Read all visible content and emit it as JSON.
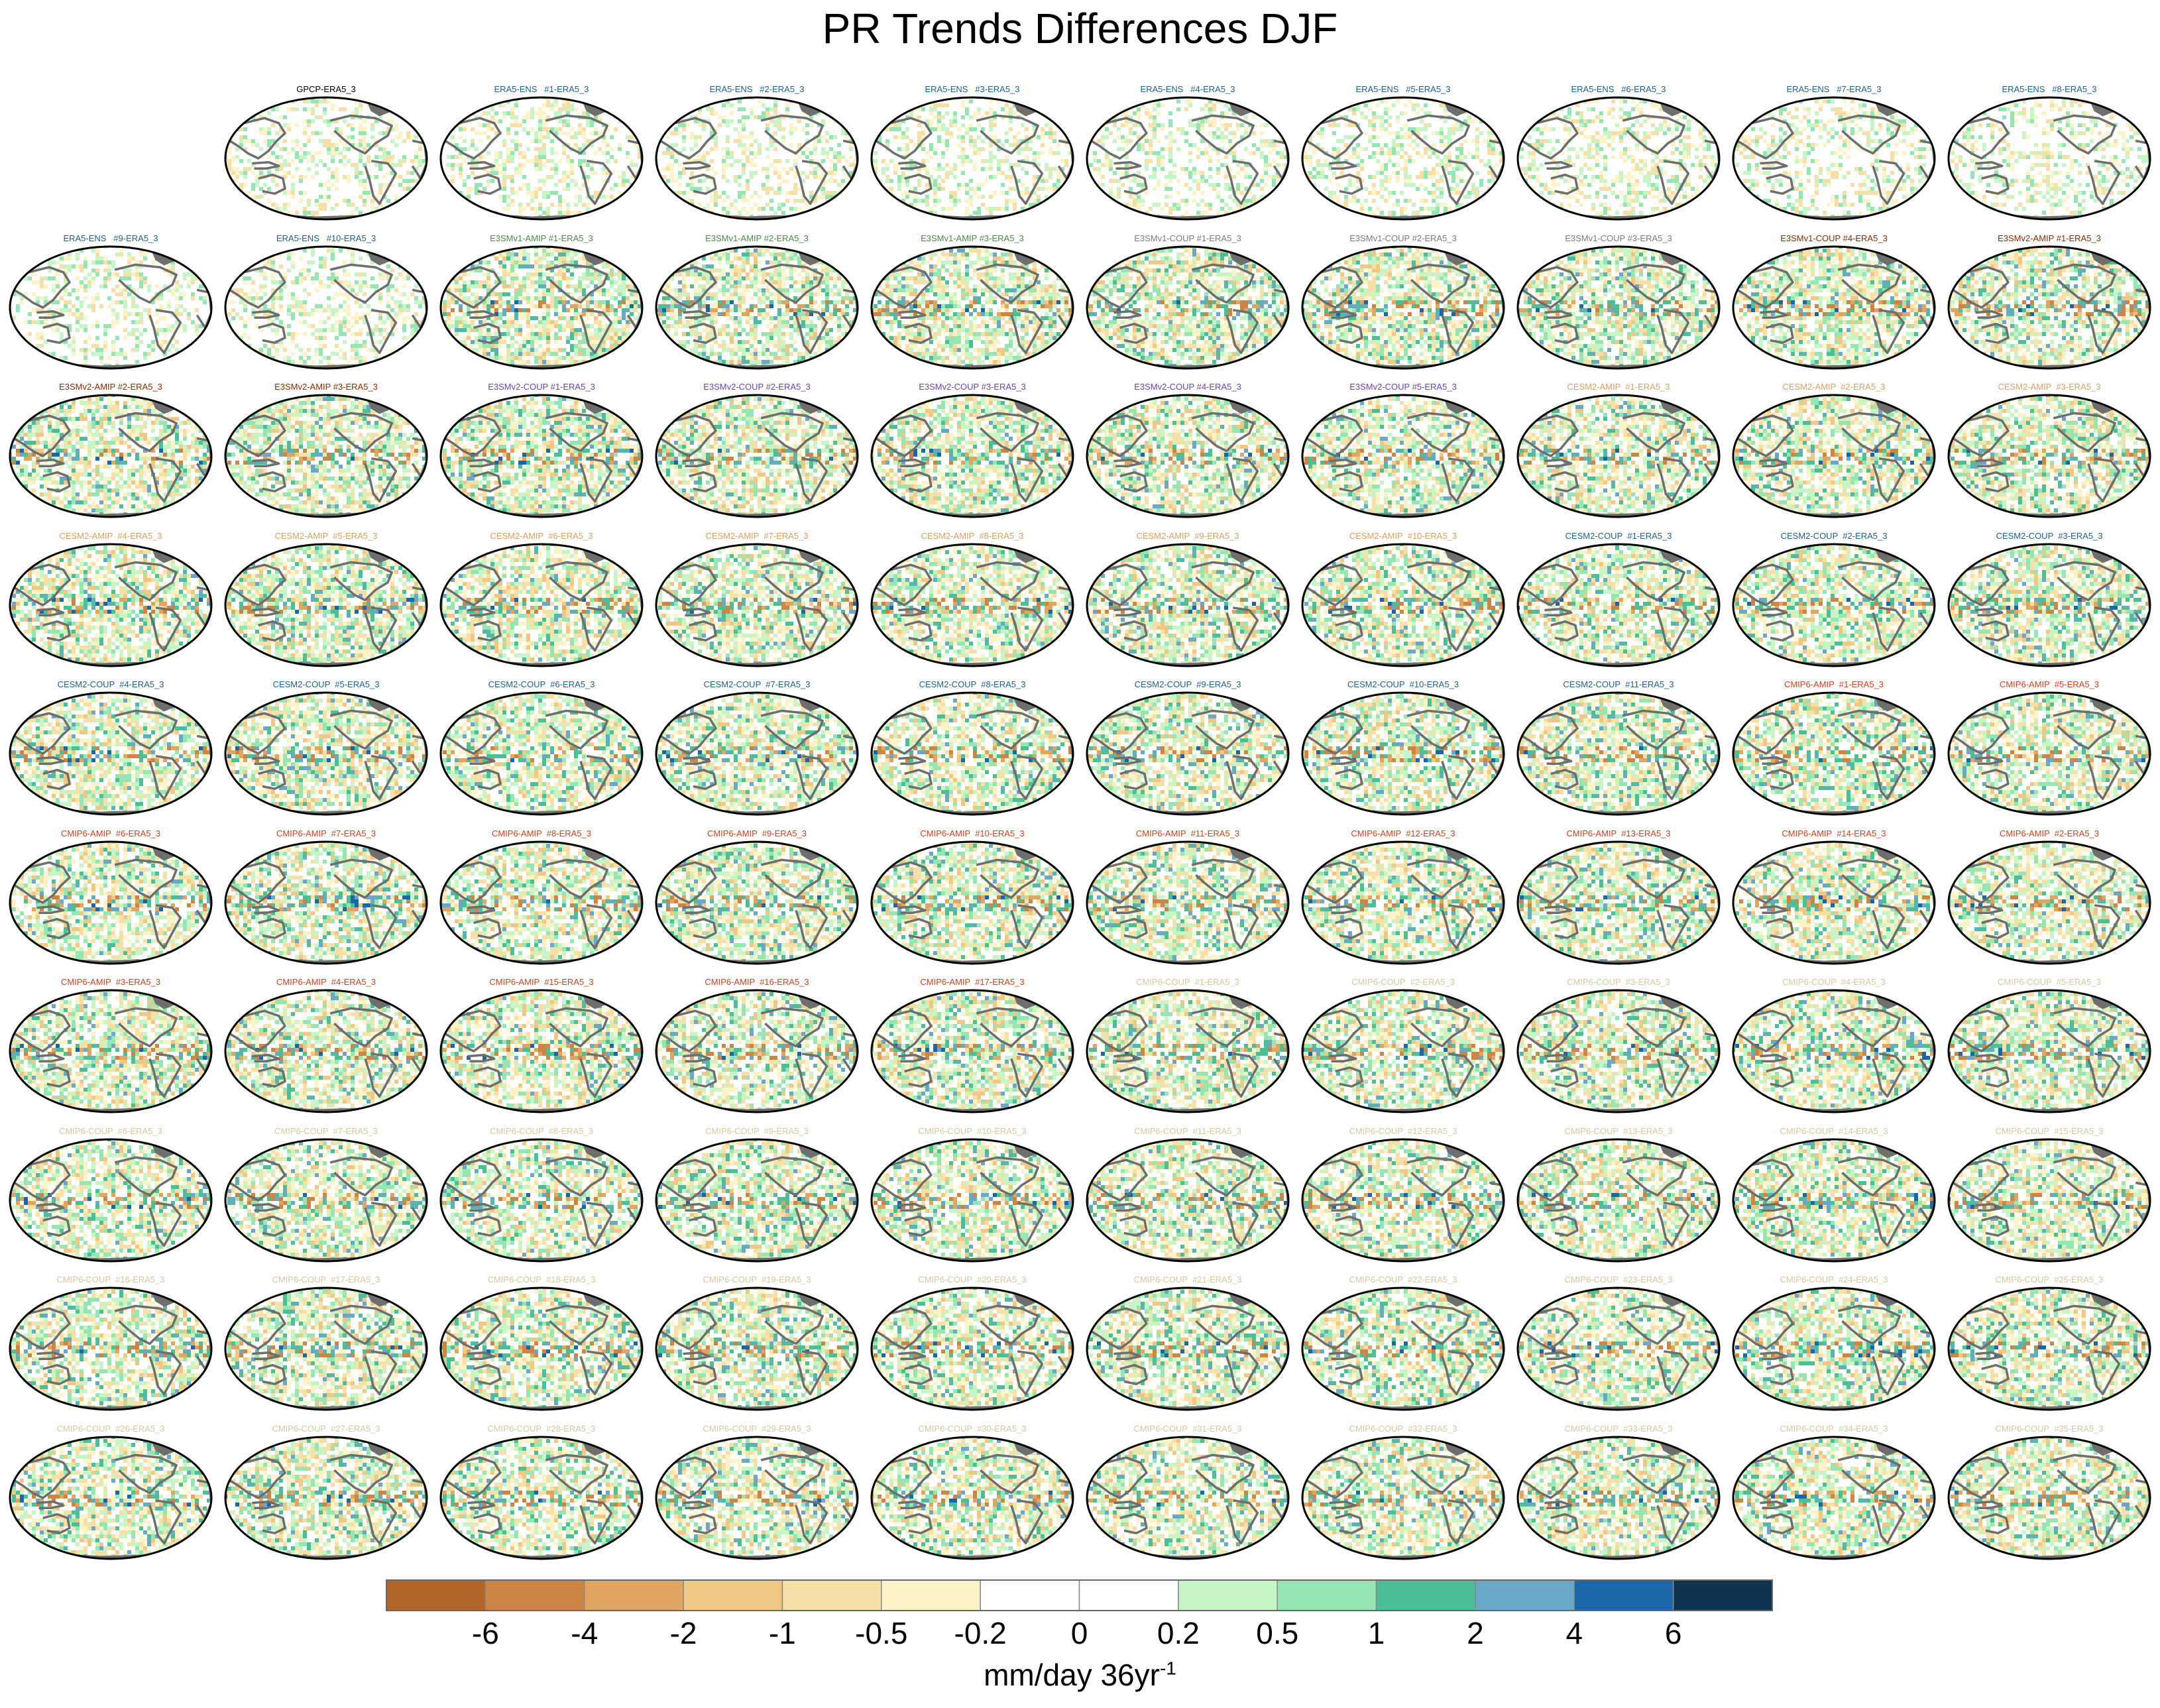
{
  "title": "PR Trends Differences DJF",
  "chart_data": {
    "type": "heatmap",
    "title": "PR Trends Differences DJF",
    "projection": "Robinson-like global map, Pacific-centered",
    "colorbar": {
      "units": "mm/day 36yr",
      "units_exponent": "-1",
      "tick_labels": [
        "-6",
        "-4",
        "-2",
        "-1",
        "-0.5",
        "-0.2",
        "0",
        "0.2",
        "0.5",
        "1",
        "2",
        "4",
        "6"
      ],
      "colors": [
        "#b2662a",
        "#cc8544",
        "#e0a560",
        "#f0c886",
        "#f6e0a8",
        "#fcf3c8",
        "#ffffff",
        "#ffffff",
        "#c8f5c6",
        "#96e6b3",
        "#4dbf98",
        "#6aa8c8",
        "#1a66a8",
        "#0d3350"
      ]
    },
    "panels": [
      {
        "label": "GPCP-ERA5_3",
        "color": "#000000",
        "row": 0,
        "col": 1
      },
      {
        "label": "ERA5-ENS   #1-ERA5_3",
        "color": "#1f5f8b",
        "row": 0,
        "col": 2
      },
      {
        "label": "ERA5-ENS   #2-ERA5_3",
        "color": "#1f5f8b",
        "row": 0,
        "col": 3
      },
      {
        "label": "ERA5-ENS   #3-ERA5_3",
        "color": "#1f5f8b",
        "row": 0,
        "col": 4
      },
      {
        "label": "ERA5-ENS   #4-ERA5_3",
        "color": "#1f5f8b",
        "row": 0,
        "col": 5
      },
      {
        "label": "ERA5-ENS   #5-ERA5_3",
        "color": "#1f5f8b",
        "row": 0,
        "col": 6
      },
      {
        "label": "ERA5-ENS   #6-ERA5_3",
        "color": "#1f5f8b",
        "row": 0,
        "col": 7
      },
      {
        "label": "ERA5-ENS   #7-ERA5_3",
        "color": "#1f5f8b",
        "row": 0,
        "col": 8
      },
      {
        "label": "ERA5-ENS   #8-ERA5_3",
        "color": "#1f5f8b",
        "row": 0,
        "col": 9
      },
      {
        "label": "ERA5-ENS   #9-ERA5_3",
        "color": "#1f5f8b",
        "row": 1,
        "col": 0
      },
      {
        "label": "ERA5-ENS   #10-ERA5_3",
        "color": "#1f5f8b",
        "row": 1,
        "col": 1
      },
      {
        "label": "E3SMv1-AMIP #1-ERA5_3",
        "color": "#4a8a4a",
        "row": 1,
        "col": 2
      },
      {
        "label": "E3SMv1-AMIP #2-ERA5_3",
        "color": "#4a8a4a",
        "row": 1,
        "col": 3
      },
      {
        "label": "E3SMv1-AMIP #3-ERA5_3",
        "color": "#4a8a4a",
        "row": 1,
        "col": 4
      },
      {
        "label": "E3SMv1-COUP #1-ERA5_3",
        "color": "#7a7a7a",
        "row": 1,
        "col": 5
      },
      {
        "label": "E3SMv1-COUP #2-ERA5_3",
        "color": "#7a7a7a",
        "row": 1,
        "col": 6
      },
      {
        "label": "E3SMv1-COUP #3-ERA5_3",
        "color": "#7a7a7a",
        "row": 1,
        "col": 7
      },
      {
        "label": "E3SMv1-COUP #4-ERA5_3",
        "color": "#8b2a00",
        "row": 1,
        "col": 8
      },
      {
        "label": "E3SMv2-AMIP #1-ERA5_3",
        "color": "#8b2a00",
        "row": 1,
        "col": 9
      },
      {
        "label": "E3SMv2-AMIP #2-ERA5_3",
        "color": "#8b2a00",
        "row": 2,
        "col": 0
      },
      {
        "label": "E3SMv2-AMIP #3-ERA5_3",
        "color": "#8b2a00",
        "row": 2,
        "col": 1
      },
      {
        "label": "E3SMv2-COUP #1-ERA5_3",
        "color": "#6a3fc0",
        "row": 2,
        "col": 2
      },
      {
        "label": "E3SMv2-COUP #2-ERA5_3",
        "color": "#6a3fc0",
        "row": 2,
        "col": 3
      },
      {
        "label": "E3SMv2-COUP #3-ERA5_3",
        "color": "#6a3fc0",
        "row": 2,
        "col": 4
      },
      {
        "label": "E3SMv2-COUP #4-ERA5_3",
        "color": "#6a3fc0",
        "row": 2,
        "col": 5
      },
      {
        "label": "E3SMv2-COUP #5-ERA5_3",
        "color": "#6a3fc0",
        "row": 2,
        "col": 6
      },
      {
        "label": "CESM2-AMIP  #1-ERA5_3",
        "color": "#d9a066",
        "row": 2,
        "col": 7
      },
      {
        "label": "CESM2-AMIP  #2-ERA5_3",
        "color": "#d9a066",
        "row": 2,
        "col": 8
      },
      {
        "label": "CESM2-AMIP  #3-ERA5_3",
        "color": "#d9a066",
        "row": 2,
        "col": 9
      },
      {
        "label": "CESM2-AMIP  #4-ERA5_3",
        "color": "#d9a066",
        "row": 3,
        "col": 0
      },
      {
        "label": "CESM2-AMIP  #5-ERA5_3",
        "color": "#d9a066",
        "row": 3,
        "col": 1
      },
      {
        "label": "CESM2-AMIP  #6-ERA5_3",
        "color": "#d9a066",
        "row": 3,
        "col": 2
      },
      {
        "label": "CESM2-AMIP  #7-ERA5_3",
        "color": "#d9a066",
        "row": 3,
        "col": 3
      },
      {
        "label": "CESM2-AMIP  #8-ERA5_3",
        "color": "#d9a066",
        "row": 3,
        "col": 4
      },
      {
        "label": "CESM2-AMIP  #9-ERA5_3",
        "color": "#d9a066",
        "row": 3,
        "col": 5
      },
      {
        "label": "CESM2-AMIP  #10-ERA5_3",
        "color": "#d9a066",
        "row": 3,
        "col": 6
      },
      {
        "label": "CESM2-COUP  #1-ERA5_3",
        "color": "#1f5f8b",
        "row": 3,
        "col": 7
      },
      {
        "label": "CESM2-COUP  #2-ERA5_3",
        "color": "#1f5f8b",
        "row": 3,
        "col": 8
      },
      {
        "label": "CESM2-COUP  #3-ERA5_3",
        "color": "#1f5f8b",
        "row": 3,
        "col": 9
      },
      {
        "label": "CESM2-COUP  #4-ERA5_3",
        "color": "#1f5f8b",
        "row": 4,
        "col": 0
      },
      {
        "label": "CESM2-COUP  #5-ERA5_3",
        "color": "#1f5f8b",
        "row": 4,
        "col": 1
      },
      {
        "label": "CESM2-COUP  #6-ERA5_3",
        "color": "#1f5f8b",
        "row": 4,
        "col": 2
      },
      {
        "label": "CESM2-COUP  #7-ERA5_3",
        "color": "#1f5f8b",
        "row": 4,
        "col": 3
      },
      {
        "label": "CESM2-COUP  #8-ERA5_3",
        "color": "#1f5f8b",
        "row": 4,
        "col": 4
      },
      {
        "label": "CESM2-COUP  #9-ERA5_3",
        "color": "#1f5f8b",
        "row": 4,
        "col": 5
      },
      {
        "label": "CESM2-COUP  #10-ERA5_3",
        "color": "#1f5f8b",
        "row": 4,
        "col": 6
      },
      {
        "label": "CESM2-COUP  #11-ERA5_3",
        "color": "#1f5f8b",
        "row": 4,
        "col": 7
      },
      {
        "label": "CMIP6-AMIP  #1-ERA5_3",
        "color": "#d2401e",
        "row": 4,
        "col": 8
      },
      {
        "label": "CMIP6-AMIP  #5-ERA5_3",
        "color": "#d2401e",
        "row": 4,
        "col": 9
      },
      {
        "label": "CMIP6-AMIP  #6-ERA5_3",
        "color": "#d2401e",
        "row": 5,
        "col": 0
      },
      {
        "label": "CMIP6-AMIP  #7-ERA5_3",
        "color": "#d2401e",
        "row": 5,
        "col": 1
      },
      {
        "label": "CMIP6-AMIP  #8-ERA5_3",
        "color": "#d2401e",
        "row": 5,
        "col": 2
      },
      {
        "label": "CMIP6-AMIP  #9-ERA5_3",
        "color": "#d2401e",
        "row": 5,
        "col": 3
      },
      {
        "label": "CMIP6-AMIP  #10-ERA5_3",
        "color": "#d2401e",
        "row": 5,
        "col": 4
      },
      {
        "label": "CMIP6-AMIP  #11-ERA5_3",
        "color": "#d2401e",
        "row": 5,
        "col": 5
      },
      {
        "label": "CMIP6-AMIP  #12-ERA5_3",
        "color": "#d2401e",
        "row": 5,
        "col": 6
      },
      {
        "label": "CMIP6-AMIP  #13-ERA5_3",
        "color": "#d2401e",
        "row": 5,
        "col": 7
      },
      {
        "label": "CMIP6-AMIP  #14-ERA5_3",
        "color": "#d2401e",
        "row": 5,
        "col": 8
      },
      {
        "label": "CMIP6-AMIP  #2-ERA5_3",
        "color": "#d2401e",
        "row": 5,
        "col": 9
      },
      {
        "label": "CMIP6-AMIP  #3-ERA5_3",
        "color": "#d2401e",
        "row": 6,
        "col": 0
      },
      {
        "label": "CMIP6-AMIP  #4-ERA5_3",
        "color": "#d2401e",
        "row": 6,
        "col": 1
      },
      {
        "label": "CMIP6-AMIP  #15-ERA5_3",
        "color": "#d2401e",
        "row": 6,
        "col": 2
      },
      {
        "label": "CMIP6-AMIP  #16-ERA5_3",
        "color": "#d2401e",
        "row": 6,
        "col": 3
      },
      {
        "label": "CMIP6-AMIP  #17-ERA5_3",
        "color": "#d2401e",
        "row": 6,
        "col": 4
      },
      {
        "label": "CMIP6-COUP  #1-ERA5_3",
        "color": "#d8c8a0",
        "row": 6,
        "col": 5
      },
      {
        "label": "CMIP6-COUP  #2-ERA5_3",
        "color": "#d8c8a0",
        "row": 6,
        "col": 6
      },
      {
        "label": "CMIP6-COUP  #3-ERA5_3",
        "color": "#d8c8a0",
        "row": 6,
        "col": 7
      },
      {
        "label": "CMIP6-COUP  #4-ERA5_3",
        "color": "#d8c8a0",
        "row": 6,
        "col": 8
      },
      {
        "label": "CMIP6-COUP  #5-ERA5_3",
        "color": "#d8c8a0",
        "row": 6,
        "col": 9
      },
      {
        "label": "CMIP6-COUP  #6-ERA5_3",
        "color": "#d8c8a0",
        "row": 7,
        "col": 0
      },
      {
        "label": "CMIP6-COUP  #7-ERA5_3",
        "color": "#d8c8a0",
        "row": 7,
        "col": 1
      },
      {
        "label": "CMIP6-COUP  #8-ERA5_3",
        "color": "#d8c8a0",
        "row": 7,
        "col": 2
      },
      {
        "label": "CMIP6-COUP  #9-ERA5_3",
        "color": "#d8c8a0",
        "row": 7,
        "col": 3
      },
      {
        "label": "CMIP6-COUP  #10-ERA5_3",
        "color": "#d8c8a0",
        "row": 7,
        "col": 4
      },
      {
        "label": "CMIP6-COUP  #11-ERA5_3",
        "color": "#d8c8a0",
        "row": 7,
        "col": 5
      },
      {
        "label": "CMIP6-COUP  #12-ERA5_3",
        "color": "#d8c8a0",
        "row": 7,
        "col": 6
      },
      {
        "label": "CMIP6-COUP  #13-ERA5_3",
        "color": "#d8c8a0",
        "row": 7,
        "col": 7
      },
      {
        "label": "CMIP6-COUP  #14-ERA5_3",
        "color": "#d8c8a0",
        "row": 7,
        "col": 8
      },
      {
        "label": "CMIP6-COUP  #15-ERA5_3",
        "color": "#d8c8a0",
        "row": 7,
        "col": 9
      },
      {
        "label": "CMIP6-COUP  #16-ERA5_3",
        "color": "#d8c8a0",
        "row": 8,
        "col": 0
      },
      {
        "label": "CMIP6-COUP  #17-ERA5_3",
        "color": "#d8c8a0",
        "row": 8,
        "col": 1
      },
      {
        "label": "CMIP6-COUP  #18-ERA5_3",
        "color": "#d8c8a0",
        "row": 8,
        "col": 2
      },
      {
        "label": "CMIP6-COUP  #19-ERA5_3",
        "color": "#d8c8a0",
        "row": 8,
        "col": 3
      },
      {
        "label": "CMIP6-COUP  #20-ERA5_3",
        "color": "#d8c8a0",
        "row": 8,
        "col": 4
      },
      {
        "label": "CMIP6-COUP  #21-ERA5_3",
        "color": "#d8c8a0",
        "row": 8,
        "col": 5
      },
      {
        "label": "CMIP6-COUP  #22-ERA5_3",
        "color": "#d8c8a0",
        "row": 8,
        "col": 6
      },
      {
        "label": "CMIP6-COUP  #23-ERA5_3",
        "color": "#d8c8a0",
        "row": 8,
        "col": 7
      },
      {
        "label": "CMIP6-COUP  #24-ERA5_3",
        "color": "#d8c8a0",
        "row": 8,
        "col": 8
      },
      {
        "label": "CMIP6-COUP  #25-ERA5_3",
        "color": "#d8c8a0",
        "row": 8,
        "col": 9
      },
      {
        "label": "CMIP6-COUP  #26-ERA5_3",
        "color": "#d8c8a0",
        "row": 9,
        "col": 0
      },
      {
        "label": "CMIP6-COUP  #27-ERA5_3",
        "color": "#d8c8a0",
        "row": 9,
        "col": 1
      },
      {
        "label": "CMIP6-COUP  #28-ERA5_3",
        "color": "#d8c8a0",
        "row": 9,
        "col": 2
      },
      {
        "label": "CMIP6-COUP  #29-ERA5_3",
        "color": "#d8c8a0",
        "row": 9,
        "col": 3
      },
      {
        "label": "CMIP6-COUP  #30-ERA5_3",
        "color": "#d8c8a0",
        "row": 9,
        "col": 4
      },
      {
        "label": "CMIP6-COUP  #31-ERA5_3",
        "color": "#d8c8a0",
        "row": 9,
        "col": 5
      },
      {
        "label": "CMIP6-COUP  #32-ERA5_3",
        "color": "#d8c8a0",
        "row": 9,
        "col": 6
      },
      {
        "label": "CMIP6-COUP  #33-ERA5_3",
        "color": "#d8c8a0",
        "row": 9,
        "col": 7
      },
      {
        "label": "CMIP6-COUP  #34-ERA5_3",
        "color": "#d8c8a0",
        "row": 9,
        "col": 8
      },
      {
        "label": "CMIP6-COUP  #35-ERA5_3",
        "color": "#d8c8a0",
        "row": 9,
        "col": 9
      }
    ]
  }
}
